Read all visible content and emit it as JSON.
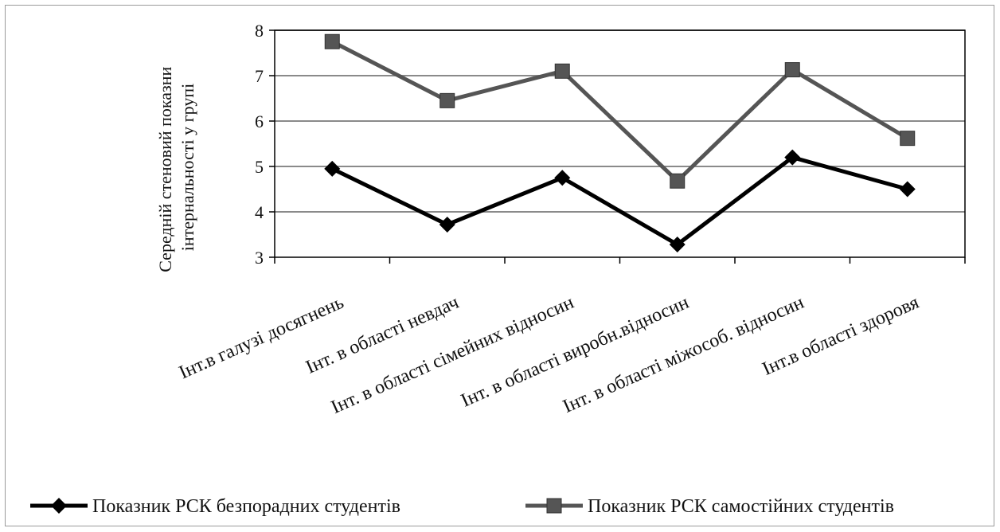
{
  "chart_data": {
    "type": "line",
    "title": "",
    "xlabel": "",
    "ylabel_lines": [
      "Середній стеновий показни",
      "інтернальності у групі"
    ],
    "ylim": [
      3,
      8
    ],
    "yticks": [
      "3",
      "4",
      "5",
      "6",
      "7",
      "8"
    ],
    "categories": [
      "Інт.в галузі досягнень",
      "Інт. в області невдач",
      "Інт. в області сімейних відносин",
      "Інт. в області виробн.відносин",
      "Інт. в області міжособ. відносин",
      "Інт.в області здоровя"
    ],
    "series": [
      {
        "name": "Показник РСК безпорадних студентів",
        "values": [
          4.95,
          3.72,
          4.75,
          3.28,
          5.2,
          4.5
        ],
        "color": "#000000",
        "marker": "diamond"
      },
      {
        "name": "Показник РСК самостійних студентів",
        "values": [
          7.75,
          6.45,
          7.1,
          4.68,
          7.13,
          5.62
        ],
        "color": "#555555",
        "marker": "square"
      }
    ],
    "grid": true,
    "legend_position": "bottom"
  }
}
